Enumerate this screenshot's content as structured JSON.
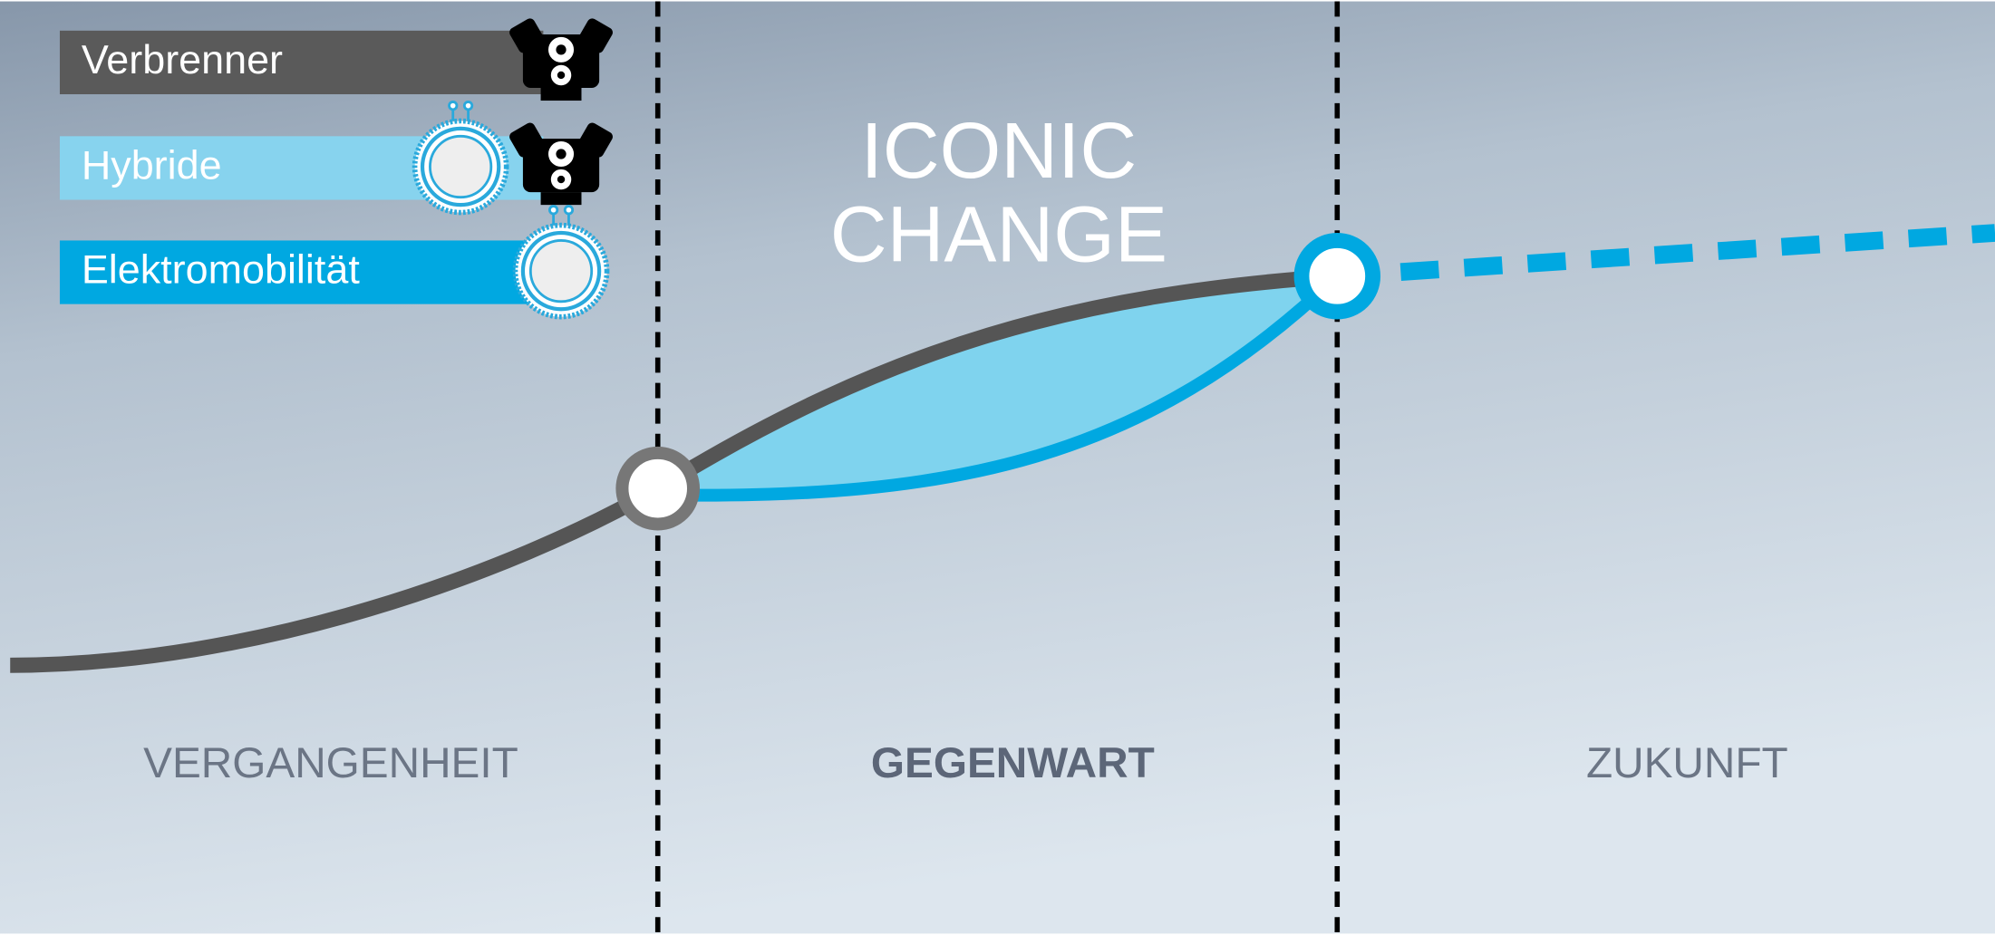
{
  "legend": [
    {
      "label": "Verbrenner"
    },
    {
      "label": "Hybride"
    },
    {
      "label": "Elektromobilität"
    }
  ],
  "title": [
    "ICONIC",
    "CHANGE"
  ],
  "periods": [
    "VERGANGENHEIT",
    "GEGENWART",
    "ZUKUNFT"
  ]
}
